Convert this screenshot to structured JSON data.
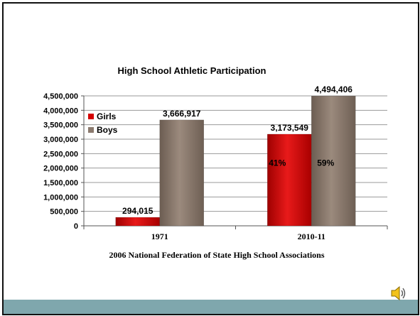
{
  "chart_data": {
    "type": "bar",
    "title": "High School Athletic Participation",
    "categories": [
      "1971",
      "2010-11"
    ],
    "series": [
      {
        "name": "Girls",
        "values": [
          294015,
          3173549
        ],
        "labels": [
          "294,015",
          "3,173,549"
        ],
        "color": "#d40000"
      },
      {
        "name": "Boys",
        "values": [
          3666917,
          4494406
        ],
        "labels": [
          "3,666,917",
          "4,494,406"
        ],
        "color": "#8b7a6e"
      }
    ],
    "ylim": [
      0,
      4500000
    ],
    "yticks": [
      0,
      500000,
      1000000,
      1500000,
      2000000,
      2500000,
      3000000,
      3500000,
      4000000,
      4500000
    ],
    "ytick_labels": [
      "0",
      "500,000",
      "1,000,000",
      "1,500,000",
      "2,000,000",
      "2,500,000",
      "3,000,000",
      "3,500,000",
      "4,000,000",
      "4,500,000"
    ],
    "grid": true,
    "legend_position": "left",
    "annotations": [
      {
        "text": "41%",
        "category": "2010-11",
        "series": "Girls"
      },
      {
        "text": "59%",
        "category": "2010-11",
        "series": "Boys"
      }
    ],
    "source": "2006 National Federation of State High School Associations"
  },
  "footer": {
    "color": "#7fa7ad"
  },
  "icons": {
    "speaker": "speaker-icon"
  }
}
